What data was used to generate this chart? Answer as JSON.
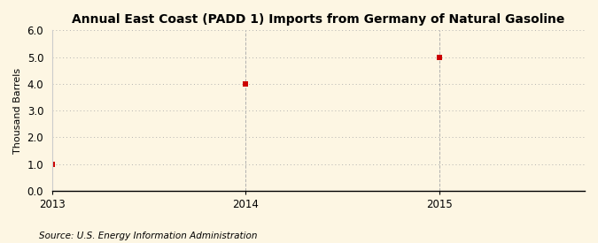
{
  "title": "Annual East Coast (PADD 1) Imports from Germany of Natural Gasoline",
  "ylabel": "Thousand Barrels",
  "source": "Source: U.S. Energy Information Administration",
  "x_values": [
    2013,
    2014,
    2015
  ],
  "y_values": [
    1.0,
    4.0,
    5.0
  ],
  "xlim": [
    2013.0,
    2015.75
  ],
  "ylim": [
    0.0,
    6.0
  ],
  "yticks": [
    0.0,
    1.0,
    2.0,
    3.0,
    4.0,
    5.0,
    6.0
  ],
  "xticks": [
    2013,
    2014,
    2015
  ],
  "marker_color": "#cc0000",
  "marker_size": 4,
  "background_color": "#fdf6e3",
  "grid_color": "#aaaaaa",
  "title_fontsize": 10,
  "label_fontsize": 8,
  "tick_fontsize": 8.5,
  "source_fontsize": 7.5
}
